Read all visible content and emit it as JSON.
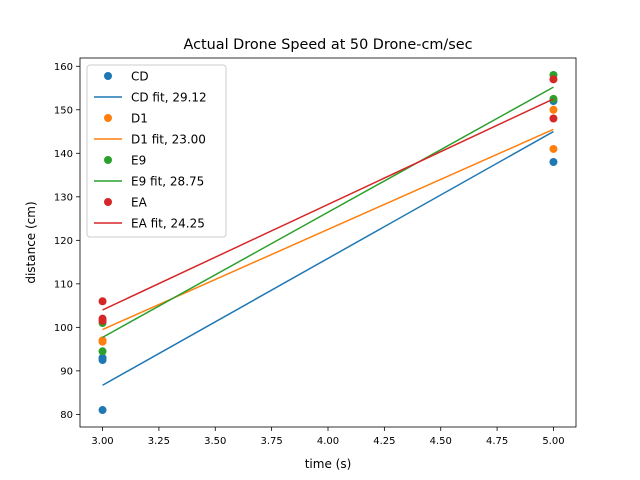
{
  "chart_data": {
    "type": "scatter",
    "title": "Actual Drone Speed at 50 Drone-cm/sec",
    "xlabel": "time (s)",
    "ylabel": "distance (cm)",
    "xlim": [
      2.9,
      5.1
    ],
    "ylim": [
      77.1,
      161.9
    ],
    "xticks": [
      3.0,
      3.25,
      3.5,
      3.75,
      4.0,
      4.25,
      4.5,
      4.75,
      5.0
    ],
    "xtick_labels": [
      "3.00",
      "3.25",
      "3.50",
      "3.75",
      "4.00",
      "4.25",
      "4.50",
      "4.75",
      "5.00"
    ],
    "yticks": [
      80,
      90,
      100,
      110,
      120,
      130,
      140,
      150,
      160
    ],
    "ytick_labels": [
      "80",
      "90",
      "100",
      "110",
      "120",
      "130",
      "140",
      "150",
      "160"
    ],
    "grid": false,
    "legend_position": "top-left",
    "series": [
      {
        "name": "CD",
        "fit_name": "CD fit, 29.12",
        "color": "#1f77b4",
        "points": [
          [
            3.0,
            81.0
          ],
          [
            3.0,
            92.5
          ],
          [
            3.0,
            93.0
          ],
          [
            5.0,
            138.0
          ],
          [
            5.0,
            152.0
          ]
        ],
        "fit": [
          [
            3.0,
            86.7
          ],
          [
            5.0,
            145.0
          ]
        ]
      },
      {
        "name": "D1",
        "fit_name": "D1 fit, 23.00",
        "color": "#ff7f0e",
        "points": [
          [
            3.0,
            96.7
          ],
          [
            3.0,
            97.0
          ],
          [
            5.0,
            141.0
          ],
          [
            5.0,
            150.0
          ]
        ],
        "fit": [
          [
            3.0,
            99.5
          ],
          [
            5.0,
            145.5
          ]
        ]
      },
      {
        "name": "E9",
        "fit_name": "E9 fit, 28.75",
        "color": "#2ca02c",
        "points": [
          [
            3.0,
            94.5
          ],
          [
            3.0,
            101.0
          ],
          [
            5.0,
            152.5
          ],
          [
            5.0,
            158.0
          ]
        ],
        "fit": [
          [
            3.0,
            97.7
          ],
          [
            5.0,
            155.2
          ]
        ]
      },
      {
        "name": "EA",
        "fit_name": "EA fit, 24.25",
        "color": "#d62728",
        "points": [
          [
            3.0,
            101.5
          ],
          [
            3.0,
            102.0
          ],
          [
            3.0,
            106.0
          ],
          [
            5.0,
            148.0
          ],
          [
            5.0,
            157.0
          ]
        ],
        "fit": [
          [
            3.0,
            104.0
          ],
          [
            5.0,
            152.5
          ]
        ]
      }
    ]
  }
}
